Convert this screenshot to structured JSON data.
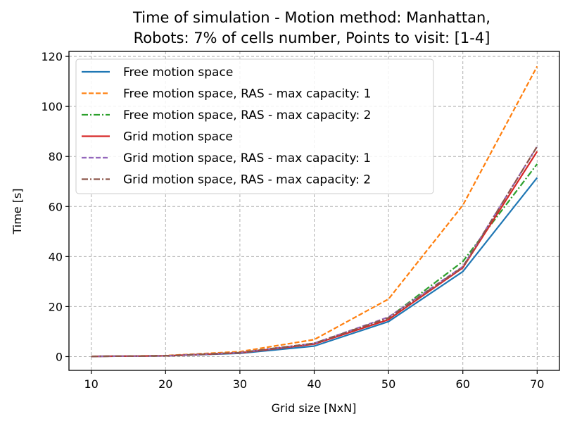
{
  "chart_data": {
    "type": "line",
    "title_line1": "Time of simulation - Motion method: Manhattan,",
    "title_line2": "Robots: 7% of cells number, Points to visit: [1-4]",
    "xlabel": "Grid size [NxN]",
    "ylabel": "Time [s]",
    "x": [
      10,
      20,
      30,
      40,
      50,
      60,
      70
    ],
    "xlim": [
      7,
      73
    ],
    "ylim": [
      -5.5,
      122
    ],
    "xticks": [
      10,
      20,
      30,
      40,
      50,
      60,
      70
    ],
    "yticks": [
      0,
      20,
      40,
      60,
      80,
      100,
      120
    ],
    "grid": true,
    "legend_position": "upper-left",
    "series": [
      {
        "name": "Free motion space",
        "color": "#1f77b4",
        "dash": "solid",
        "values": [
          0.1,
          0.3,
          1.3,
          4.2,
          14.0,
          34.0,
          71.5
        ]
      },
      {
        "name": "Free motion space, RAS - max capacity: 1",
        "color": "#ff7f0e",
        "dash": "dashed",
        "values": [
          0.1,
          0.4,
          2.0,
          6.8,
          23.0,
          60.5,
          116.0
        ]
      },
      {
        "name": "Free motion space, RAS - max capacity: 2",
        "color": "#2ca02c",
        "dash": "dashdot",
        "values": [
          0.1,
          0.3,
          1.6,
          5.3,
          15.5,
          38.0,
          77.0
        ]
      },
      {
        "name": "Grid motion space",
        "color": "#d62728",
        "dash": "solid",
        "values": [
          0.1,
          0.3,
          1.5,
          5.0,
          14.8,
          35.5,
          82.0
        ]
      },
      {
        "name": "Grid motion space, RAS - max capacity: 1",
        "color": "#9467bd",
        "dash": "dashed",
        "values": [
          0.1,
          0.3,
          1.6,
          5.3,
          15.8,
          36.0,
          84.0
        ]
      },
      {
        "name": "Grid motion space, RAS - max capacity: 2",
        "color": "#8c564b",
        "dash": "dashdot",
        "values": [
          0.1,
          0.3,
          1.6,
          5.3,
          15.5,
          35.8,
          84.0
        ]
      }
    ]
  }
}
